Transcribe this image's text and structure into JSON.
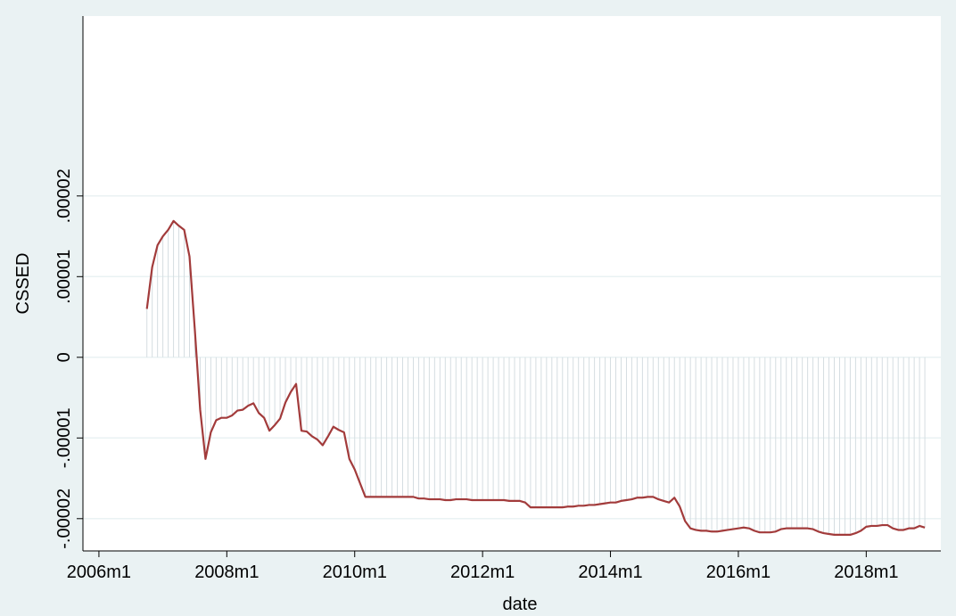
{
  "chart_data": {
    "type": "line",
    "spikes": true,
    "x_title": "date",
    "y_title": "CSSED",
    "x": [
      561,
      562,
      563,
      564,
      565,
      566,
      567,
      568,
      569,
      570,
      571,
      572,
      573,
      574,
      575,
      576,
      577,
      578,
      579,
      580,
      581,
      582,
      583,
      584,
      585,
      586,
      587,
      588,
      589,
      590,
      591,
      592,
      593,
      594,
      595,
      596,
      597,
      598,
      599,
      600,
      601,
      602,
      603,
      604,
      605,
      606,
      607,
      608,
      609,
      610,
      611,
      612,
      613,
      614,
      615,
      616,
      617,
      618,
      619,
      620,
      621,
      622,
      623,
      624,
      625,
      626,
      627,
      628,
      629,
      630,
      631,
      632,
      633,
      634,
      635,
      636,
      637,
      638,
      639,
      640,
      641,
      642,
      643,
      644,
      645,
      646,
      647,
      648,
      649,
      650,
      651,
      652,
      653,
      654,
      655,
      656,
      657,
      658,
      659,
      660,
      661,
      662,
      663,
      664,
      665,
      666,
      667,
      668,
      669,
      670,
      671,
      672,
      673,
      674,
      675,
      676,
      677,
      678,
      679,
      680,
      681,
      682,
      683,
      684,
      685,
      686,
      687,
      688,
      689,
      690,
      691,
      692,
      693,
      694,
      695,
      696,
      697,
      698,
      699,
      700,
      701,
      702,
      703,
      704,
      705,
      706,
      707
    ],
    "values": [
      6e-06,
      1.12e-05,
      1.39e-05,
      1.5e-05,
      1.58e-05,
      1.69e-05,
      1.63e-05,
      1.58e-05,
      1.25e-05,
      3.4e-06,
      -6.5e-06,
      -1.26e-05,
      -9.3e-06,
      -7.8e-06,
      -7.5e-06,
      -7.5e-06,
      -7.2e-06,
      -6.6e-06,
      -6.5e-06,
      -6e-06,
      -5.7e-06,
      -6.9e-06,
      -7.5e-06,
      -9.1e-06,
      -8.4e-06,
      -7.6e-06,
      -5.6e-06,
      -4.3e-06,
      -3.3e-06,
      -9.1e-06,
      -9.2e-06,
      -9.8e-06,
      -1.02e-05,
      -1.09e-05,
      -9.8e-06,
      -8.6e-06,
      -9e-06,
      -9.3e-06,
      -1.26e-05,
      -1.39e-05,
      -1.56e-05,
      -1.73e-05,
      -1.73e-05,
      -1.73e-05,
      -1.73e-05,
      -1.73e-05,
      -1.73e-05,
      -1.73e-05,
      -1.73e-05,
      -1.73e-05,
      -1.73e-05,
      -1.75e-05,
      -1.75e-05,
      -1.76e-05,
      -1.76e-05,
      -1.76e-05,
      -1.77e-05,
      -1.77e-05,
      -1.76e-05,
      -1.76e-05,
      -1.76e-05,
      -1.77e-05,
      -1.77e-05,
      -1.77e-05,
      -1.77e-05,
      -1.77e-05,
      -1.77e-05,
      -1.77e-05,
      -1.78e-05,
      -1.78e-05,
      -1.78e-05,
      -1.8e-05,
      -1.86e-05,
      -1.86e-05,
      -1.86e-05,
      -1.86e-05,
      -1.86e-05,
      -1.86e-05,
      -1.86e-05,
      -1.85e-05,
      -1.85e-05,
      -1.84e-05,
      -1.84e-05,
      -1.83e-05,
      -1.83e-05,
      -1.82e-05,
      -1.81e-05,
      -1.8e-05,
      -1.8e-05,
      -1.78e-05,
      -1.77e-05,
      -1.76e-05,
      -1.74e-05,
      -1.74e-05,
      -1.73e-05,
      -1.73e-05,
      -1.76e-05,
      -1.78e-05,
      -1.8e-05,
      -1.74e-05,
      -1.85e-05,
      -2.03e-05,
      -2.12e-05,
      -2.14e-05,
      -2.15e-05,
      -2.15e-05,
      -2.16e-05,
      -2.16e-05,
      -2.15e-05,
      -2.14e-05,
      -2.13e-05,
      -2.12e-05,
      -2.11e-05,
      -2.12e-05,
      -2.15e-05,
      -2.17e-05,
      -2.17e-05,
      -2.17e-05,
      -2.16e-05,
      -2.13e-05,
      -2.12e-05,
      -2.12e-05,
      -2.12e-05,
      -2.12e-05,
      -2.12e-05,
      -2.13e-05,
      -2.16e-05,
      -2.18e-05,
      -2.19e-05,
      -2.2e-05,
      -2.2e-05,
      -2.2e-05,
      -2.2e-05,
      -2.18e-05,
      -2.15e-05,
      -2.1e-05,
      -2.09e-05,
      -2.09e-05,
      -2.08e-05,
      -2.08e-05,
      -2.12e-05,
      -2.14e-05,
      -2.14e-05,
      -2.12e-05,
      -2.12e-05,
      -2.09e-05,
      -2.11e-05
    ],
    "color": "#a23b3b",
    "spike_color": "#d5dde1",
    "xlim": [
      549,
      710
    ],
    "xticks": [
      {
        "value": 552,
        "label": "2006m1"
      },
      {
        "value": 576,
        "label": "2008m1"
      },
      {
        "value": 600,
        "label": "2010m1"
      },
      {
        "value": 624,
        "label": "2012m1"
      },
      {
        "value": 648,
        "label": "2014m1"
      },
      {
        "value": 672,
        "label": "2016m1"
      },
      {
        "value": 696,
        "label": "2018m1"
      }
    ],
    "ylim": [
      -2.4e-05,
      4.23e-05
    ],
    "yticks": [
      {
        "value": -2e-05,
        "label": "-.00002"
      },
      {
        "value": -1e-05,
        "label": "-.00001"
      },
      0,
      {
        "value": 1e-05,
        "label": ".00001"
      },
      {
        "value": 2e-05,
        "label": ".00002"
      }
    ],
    "grid": true
  }
}
